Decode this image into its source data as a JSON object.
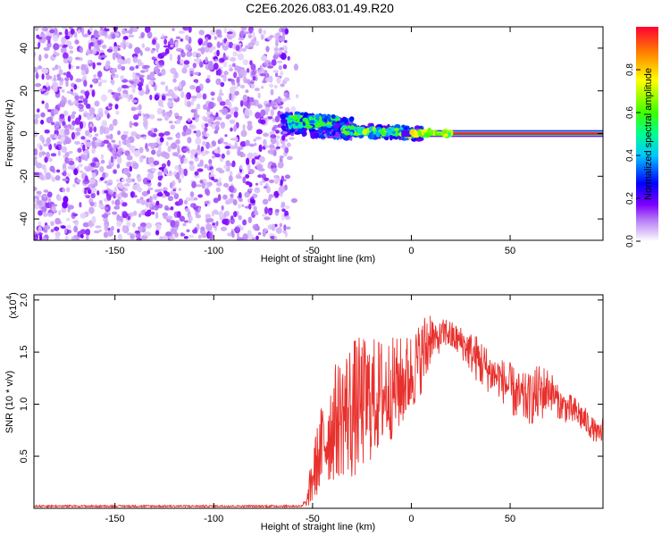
{
  "title": "C2E6.2026.083.01.49.R20",
  "colors": {
    "snr_line": "#e8302c",
    "axes": "#000000",
    "cmap": [
      "#ffffff",
      "#e6d6fb",
      "#7f00ff",
      "#0000ff",
      "#00e0ff",
      "#00ff40",
      "#ffff00",
      "#ff8000",
      "#ff0033"
    ]
  },
  "chart_data": [
    {
      "type": "heatmap",
      "title": "C2E6.2026.083.01.49.R20",
      "xlabel": "Height of straight line (km)",
      "ylabel": "Frequency (Hz)",
      "xlim": [
        -191,
        97
      ],
      "ylim": [
        -50,
        50
      ],
      "xticks": [
        -150,
        -100,
        -50,
        0,
        50
      ],
      "yticks": [
        -40,
        -20,
        0,
        20,
        40
      ],
      "colorbar": {
        "label": "Normalized spectral amplitude",
        "range": [
          0,
          1
        ],
        "ticks": [
          "0.0",
          "0.2",
          "0.4",
          "0.6",
          "0.8"
        ],
        "colormap": "rainbow (white-violet-blue-cyan-green-yellow-red)"
      },
      "regions": [
        {
          "x_range": [
            -191,
            -62
          ],
          "freq_range": [
            -50,
            50
          ],
          "amplitude": "0.0-0.15",
          "pattern": "speckle noise"
        },
        {
          "x_range": [
            -62,
            -35
          ],
          "freq_range": [
            -6,
            8
          ],
          "amplitude": "0.2-0.6",
          "pattern": "blobs near 5 Hz"
        },
        {
          "x_range": [
            -35,
            0
          ],
          "freq_range": [
            -4,
            4
          ],
          "amplitude": "0.3-0.7",
          "pattern": "band near 0 Hz"
        },
        {
          "x_range": [
            0,
            97
          ],
          "freq_range": [
            -1,
            1
          ],
          "amplitude": "0.8-1.0",
          "pattern": "narrow line at 0 Hz"
        }
      ],
      "grid": false
    },
    {
      "type": "line",
      "xlabel": "Height of straight line (km)",
      "ylabel": "SNR (10 * v/v)",
      "y_multiplier": "(x10^4)",
      "y_multiplier_base": "(x10",
      "y_multiplier_exp": "4",
      "y_multiplier_close": ")",
      "xlim": [
        -191,
        97
      ],
      "ylim": [
        0,
        2.05
      ],
      "xticks": [
        -150,
        -100,
        -50,
        0,
        50
      ],
      "yticks": [
        0.5,
        1.0,
        1.5,
        2.0
      ],
      "ytick_labels": [
        "0.5",
        "1.0",
        "1.5",
        "2.0"
      ],
      "series": [
        {
          "x": [
            -191,
            -150,
            -100,
            -60,
            -53,
            -50,
            -47,
            -45,
            -40,
            -35,
            -30,
            -25,
            -20,
            -15,
            -10,
            -5,
            0,
            5,
            8,
            10,
            12,
            15,
            18,
            20,
            25,
            30,
            35,
            40,
            45,
            50,
            55,
            60,
            65,
            70,
            75,
            80,
            85,
            90,
            95,
            97
          ],
          "y": [
            0.01,
            0.01,
            0.01,
            0.02,
            0.05,
            0.3,
            0.5,
            0.6,
            0.8,
            0.9,
            0.95,
            1.0,
            1.05,
            1.1,
            1.15,
            1.2,
            1.3,
            1.45,
            1.55,
            1.7,
            1.6,
            1.65,
            1.7,
            1.65,
            1.6,
            1.5,
            1.4,
            1.3,
            1.25,
            1.15,
            1.05,
            1.05,
            1.1,
            1.15,
            1.0,
            0.95,
            0.9,
            0.8,
            0.7,
            0.75
          ],
          "spread": [
            0,
            0,
            0,
            0,
            0.03,
            0.3,
            0.35,
            0.45,
            0.55,
            0.6,
            0.7,
            0.65,
            0.6,
            0.55,
            0.5,
            0.45,
            0.4,
            0.35,
            0.4,
            0.25,
            0.15,
            0.15,
            0.15,
            0.15,
            0.15,
            0.2,
            0.25,
            0.2,
            0.2,
            0.25,
            0.25,
            0.25,
            0.3,
            0.2,
            0.15,
            0.15,
            0.15,
            0.12,
            0.1,
            0.15
          ]
        }
      ],
      "grid": false
    }
  ]
}
